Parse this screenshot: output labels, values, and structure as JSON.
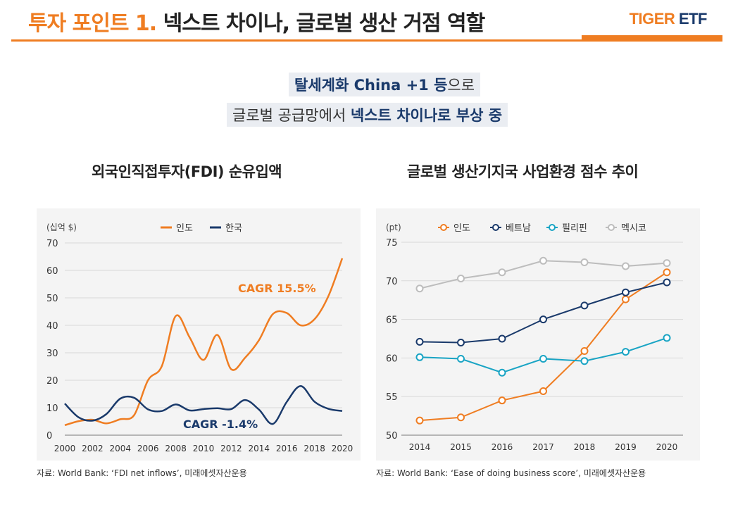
{
  "header": {
    "title_accent": "투자 포인트 1.",
    "title_rest": "넥스트 차이나, 글로벌 생산 거점 역할",
    "logo_tiger": "TIGER",
    "logo_etf": "ETF",
    "accent_color": "#ef7d22",
    "brand_color": "#1a3a6b"
  },
  "subtitle": {
    "line1_bold": "탈세계화 China +1 등",
    "line1_normal": "으로",
    "line2_normal": "글로벌 공급망에서 ",
    "line2_bold": "넥스트 차이나로 부상 중"
  },
  "left": {
    "title": "외국인직접투자(FDI) 순유입액",
    "source": "자료: World Bank: ‘FDI net inflows’, 미래에셋자산운용"
  },
  "right": {
    "title": "글로벌 생산기지국 사업환경 점수 추이",
    "source": "자료: World Bank: ‘Ease of doing business score’, 미래에셋자산운용"
  },
  "chart_data": [
    {
      "type": "line",
      "unit_label": "(십억 $)",
      "x": [
        2000,
        2001,
        2002,
        2003,
        2004,
        2005,
        2006,
        2007,
        2008,
        2009,
        2010,
        2011,
        2012,
        2013,
        2014,
        2015,
        2016,
        2017,
        2018,
        2019,
        2020
      ],
      "xticks": [
        2000,
        2002,
        2004,
        2006,
        2008,
        2010,
        2012,
        2014,
        2016,
        2018,
        2020
      ],
      "ylim": [
        0,
        70
      ],
      "yticks": [
        0,
        10,
        20,
        30,
        40,
        50,
        60,
        70
      ],
      "grid": true,
      "legend": "top",
      "series": [
        {
          "name": "인도",
          "color": "#ef7d22",
          "values": [
            3.6,
            5.1,
            5.6,
            4.3,
            5.8,
            7.3,
            20.0,
            25.2,
            43.4,
            35.6,
            27.4,
            36.5,
            24.0,
            28.2,
            34.6,
            44.1,
            44.5,
            40.0,
            42.2,
            50.6,
            64.4
          ]
        },
        {
          "name": "한국",
          "color": "#1a3a6b",
          "values": [
            11.5,
            6.5,
            5.3,
            7.7,
            13.3,
            13.6,
            9.4,
            8.8,
            11.2,
            9.0,
            9.5,
            9.8,
            9.5,
            12.8,
            9.3,
            4.1,
            12.1,
            17.9,
            12.2,
            9.6,
            8.8
          ]
        }
      ],
      "annotations": [
        {
          "text": "CAGR 15.5%",
          "color": "#ef7d22"
        },
        {
          "text": "CAGR -1.4%",
          "color": "#1a3a6b"
        }
      ]
    },
    {
      "type": "line",
      "unit_label": "(pt)",
      "x": [
        2014,
        2015,
        2016,
        2017,
        2018,
        2019,
        2020
      ],
      "ylim": [
        50,
        75
      ],
      "yticks": [
        50,
        55,
        60,
        65,
        70,
        75
      ],
      "grid": true,
      "legend": "top",
      "markers": "circle-open",
      "series": [
        {
          "name": "인도",
          "color": "#ef7d22",
          "values": [
            51.9,
            52.3,
            54.5,
            55.7,
            60.9,
            67.6,
            71.1
          ]
        },
        {
          "name": "베트남",
          "color": "#1a3a6b",
          "values": [
            62.1,
            62.0,
            62.5,
            65.0,
            66.8,
            68.5,
            69.8
          ]
        },
        {
          "name": "필리핀",
          "color": "#19a4c4",
          "values": [
            60.1,
            59.9,
            58.1,
            59.9,
            59.6,
            60.8,
            62.6
          ]
        },
        {
          "name": "멕시코",
          "color": "#bdbdbd",
          "values": [
            69.0,
            70.3,
            71.1,
            72.6,
            72.4,
            71.9,
            72.3
          ]
        }
      ]
    }
  ]
}
